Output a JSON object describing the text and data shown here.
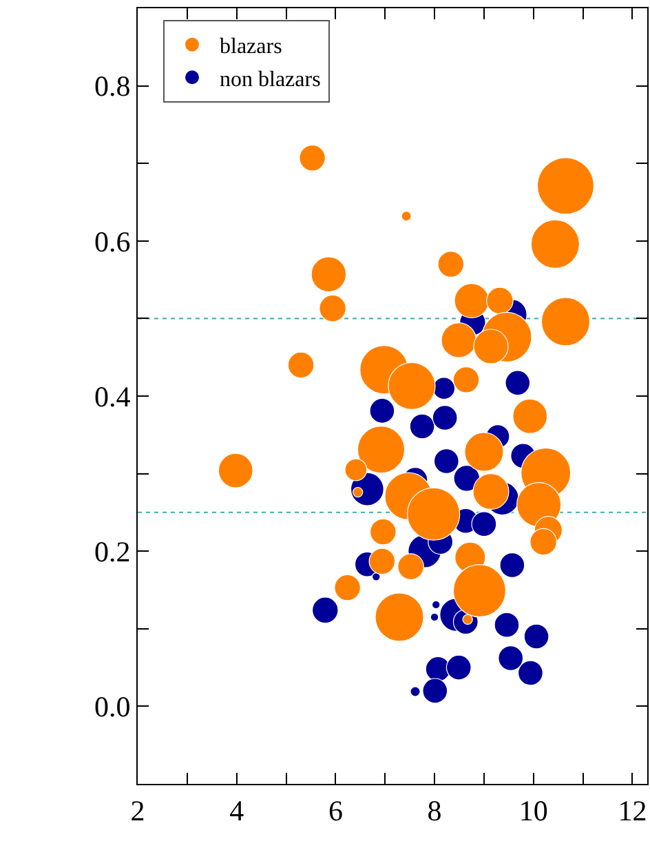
{
  "chart_data": {
    "type": "bubble",
    "xlim": [
      2,
      12.3
    ],
    "ylim": [
      -0.1,
      0.9
    ],
    "xticks": [
      2,
      {
        "value": 3,
        "label": null
      },
      4,
      {
        "value": 5,
        "label": null
      },
      6,
      {
        "value": 7,
        "label": null
      },
      8,
      {
        "value": 9,
        "label": null
      },
      10,
      {
        "value": 11,
        "label": null
      },
      12
    ],
    "yticks": [
      {
        "value": 0.0,
        "label": "0.0"
      },
      {
        "value": 0.1,
        "label": null
      },
      0.2,
      {
        "value": 0.3,
        "label": null
      },
      0.4,
      {
        "value": 0.5,
        "label": null
      },
      0.6,
      {
        "value": 0.7,
        "label": null
      },
      0.8
    ],
    "legend": "top left",
    "grid": false,
    "marker": "circle",
    "ref_lines": [
      {
        "axis": "y",
        "value": 0.5,
        "color": "#4db3b3",
        "line_style": "dotted"
      },
      {
        "axis": "y",
        "value": 0.25,
        "color": "#4db8b8",
        "line_style": "dotted"
      }
    ],
    "series": [
      {
        "name": "blazars",
        "color": "#ff8000",
        "x": [
          5.53,
          7.43,
          10.65,
          10.44,
          8.33,
          5.86,
          5.94,
          8.75,
          9.32,
          10.65,
          8.49,
          9.46,
          9.14,
          5.3,
          6.98,
          7.54,
          8.64,
          9.93,
          6.92,
          6.41,
          9.0,
          10.25,
          9.14,
          7.47,
          7.98,
          10.11,
          10.3,
          10.2,
          6.96,
          3.98,
          6.45,
          6.94,
          7.52,
          8.72,
          8.91,
          7.29,
          6.24,
          8.67
        ],
        "values": [
          0.707,
          0.632,
          0.671,
          0.596,
          0.57,
          0.557,
          0.513,
          0.523,
          0.523,
          0.496,
          0.472,
          0.476,
          0.464,
          0.44,
          0.434,
          0.413,
          0.421,
          0.374,
          0.331,
          0.305,
          0.328,
          0.301,
          0.277,
          0.271,
          0.248,
          0.26,
          0.227,
          0.212,
          0.225,
          0.304,
          0.276,
          0.187,
          0.18,
          0.192,
          0.149,
          0.115,
          0.153,
          0.112
        ],
        "sizes": [
          0.21,
          0.03,
          1,
          0.73,
          0.21,
          0.38,
          0.22,
          0.37,
          0.22,
          0.73,
          0.38,
          0.77,
          0.37,
          0.21,
          0.73,
          0.69,
          0.21,
          0.37,
          0.69,
          0.15,
          0.47,
          0.77,
          0.4,
          0.69,
          0.86,
          0.61,
          0.24,
          0.22,
          0.21,
          0.37,
          0.03,
          0.21,
          0.21,
          0.29,
          0.86,
          0.73,
          0.21,
          0.03
        ]
      },
      {
        "name": "non blazars",
        "color": "#000099",
        "x": [
          9.56,
          8.77,
          9.68,
          8.19,
          6.94,
          7.75,
          8.21,
          9.28,
          9.79,
          8.24,
          8.65,
          6.64,
          9.37,
          7.61,
          8.63,
          9.0,
          7.8,
          8.12,
          6.64,
          9.57,
          6.82,
          5.79,
          8.03,
          8.0,
          8.44,
          8.63,
          9.46,
          10.06,
          9.54,
          9.94,
          8.07,
          8.49,
          8.01,
          7.61
        ],
        "values": [
          0.505,
          0.495,
          0.417,
          0.41,
          0.381,
          0.361,
          0.372,
          0.348,
          0.323,
          0.316,
          0.294,
          0.28,
          0.268,
          0.292,
          0.239,
          0.235,
          0.2,
          0.212,
          0.183,
          0.182,
          0.167,
          0.124,
          0.131,
          0.115,
          0.118,
          0.109,
          0.105,
          0.09,
          0.062,
          0.043,
          0.048,
          0.05,
          0.02,
          0.019
        ],
        "sizes": [
          0.29,
          0.21,
          0.19,
          0.15,
          0.19,
          0.19,
          0.19,
          0.17,
          0.19,
          0.19,
          0.21,
          0.34,
          0.34,
          0.19,
          0.19,
          0.19,
          0.34,
          0.19,
          0.19,
          0.19,
          0.02,
          0.21,
          0.02,
          0.02,
          0.34,
          0.19,
          0.19,
          0.19,
          0.19,
          0.19,
          0.19,
          0.19,
          0.19,
          0.03
        ]
      }
    ]
  }
}
